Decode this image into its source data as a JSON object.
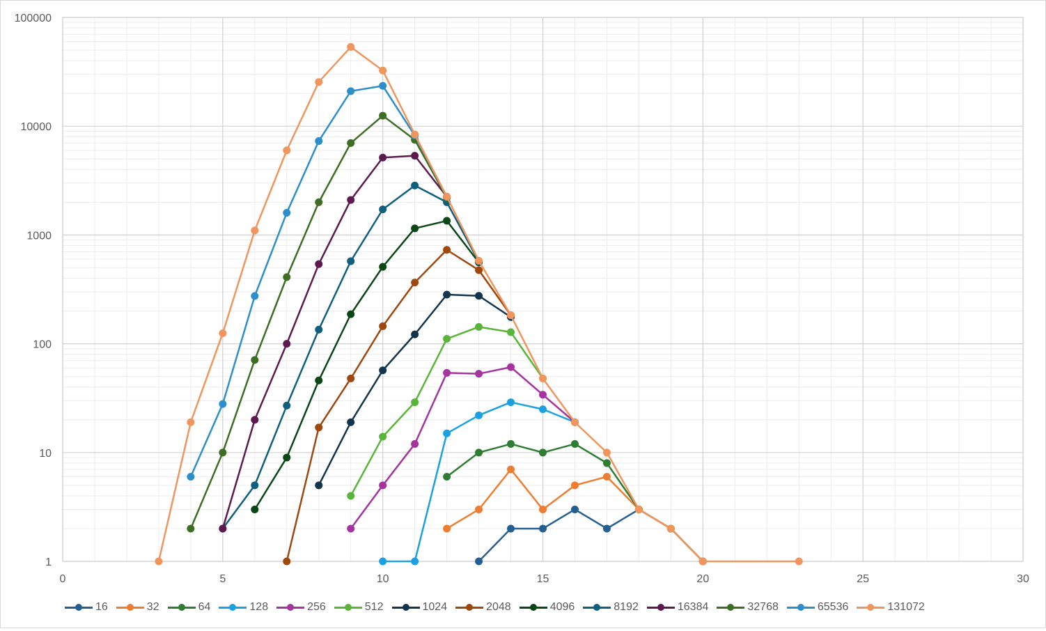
{
  "chart_data": {
    "type": "line",
    "title": "",
    "xlabel": "",
    "ylabel": "",
    "xlim": [
      0,
      30
    ],
    "ylim": [
      1,
      100000
    ],
    "y_scale": "log",
    "x_ticks": [
      "0",
      "5",
      "10",
      "15",
      "20",
      "25",
      "30"
    ],
    "y_ticks": [
      "1",
      "10",
      "100",
      "1000",
      "10000",
      "100000"
    ],
    "grid": true,
    "legend_position": "bottom",
    "series": [
      {
        "name": "16",
        "color": "#255E91",
        "points": [
          [
            13,
            1
          ],
          [
            14,
            2
          ],
          [
            15,
            2
          ],
          [
            16,
            3
          ],
          [
            17,
            2
          ],
          [
            18,
            3
          ],
          [
            19,
            2
          ],
          [
            20,
            1
          ]
        ]
      },
      {
        "name": "32",
        "color": "#ED7D31",
        "points": [
          [
            12,
            2
          ],
          [
            13,
            3
          ],
          [
            14,
            7
          ],
          [
            15,
            3
          ],
          [
            16,
            5
          ],
          [
            17,
            6
          ],
          [
            18,
            3
          ],
          [
            19,
            2
          ],
          [
            20,
            1
          ]
        ]
      },
      {
        "name": "64",
        "color": "#2E7D32",
        "points": [
          [
            12,
            6
          ],
          [
            13,
            10
          ],
          [
            14,
            12
          ],
          [
            15,
            10
          ],
          [
            16,
            12
          ],
          [
            17,
            8
          ],
          [
            18,
            3
          ],
          [
            19,
            2
          ],
          [
            20,
            1
          ]
        ]
      },
      {
        "name": "128",
        "color": "#1BA1E2",
        "points": [
          [
            10,
            1
          ],
          [
            11,
            1
          ],
          [
            12,
            15
          ],
          [
            13,
            22
          ],
          [
            14,
            29
          ],
          [
            15,
            25
          ],
          [
            16,
            19
          ]
        ]
      },
      {
        "name": "256",
        "color": "#A5349F",
        "points": [
          [
            9,
            2
          ],
          [
            10,
            5
          ],
          [
            11,
            12
          ],
          [
            12,
            54
          ],
          [
            13,
            53
          ],
          [
            14,
            61
          ],
          [
            15,
            34
          ],
          [
            16,
            19
          ]
        ]
      },
      {
        "name": "512",
        "color": "#5BB43A",
        "points": [
          [
            9,
            4
          ],
          [
            10,
            14
          ],
          [
            11,
            29
          ],
          [
            12,
            111
          ],
          [
            13,
            143
          ],
          [
            14,
            128
          ],
          [
            15,
            48
          ]
        ]
      },
      {
        "name": "1024",
        "color": "#12344D",
        "points": [
          [
            8,
            5
          ],
          [
            9,
            19
          ],
          [
            10,
            57
          ],
          [
            11,
            122
          ],
          [
            12,
            283
          ],
          [
            13,
            276
          ],
          [
            14,
            176
          ]
        ]
      },
      {
        "name": "2048",
        "color": "#9E480E",
        "points": [
          [
            7,
            1
          ],
          [
            8,
            17
          ],
          [
            9,
            48
          ],
          [
            10,
            145
          ],
          [
            11,
            366
          ],
          [
            12,
            730
          ],
          [
            13,
            475
          ],
          [
            14,
            183
          ]
        ]
      },
      {
        "name": "4096",
        "color": "#0B4616",
        "points": [
          [
            6,
            3
          ],
          [
            7,
            9
          ],
          [
            8,
            46
          ],
          [
            9,
            187
          ],
          [
            10,
            510
          ],
          [
            11,
            1150
          ],
          [
            12,
            1350
          ],
          [
            13,
            560
          ]
        ]
      },
      {
        "name": "8192",
        "color": "#0F5F7D",
        "points": [
          [
            5,
            2
          ],
          [
            6,
            5
          ],
          [
            7,
            27
          ],
          [
            8,
            135
          ],
          [
            9,
            575
          ],
          [
            10,
            1720
          ],
          [
            11,
            2850
          ],
          [
            12,
            2000
          ],
          [
            13,
            570
          ]
        ]
      },
      {
        "name": "16384",
        "color": "#5C1A4F",
        "points": [
          [
            5,
            2
          ],
          [
            6,
            20
          ],
          [
            7,
            100
          ],
          [
            8,
            540
          ],
          [
            9,
            2100
          ],
          [
            10,
            5150
          ],
          [
            11,
            5350
          ],
          [
            12,
            2250
          ]
        ]
      },
      {
        "name": "32768",
        "color": "#3E6E23",
        "points": [
          [
            4,
            2
          ],
          [
            5,
            10
          ],
          [
            6,
            71
          ],
          [
            7,
            410
          ],
          [
            8,
            2000
          ],
          [
            9,
            7000
          ],
          [
            10,
            12500
          ],
          [
            11,
            7500
          ],
          [
            12,
            2200
          ]
        ]
      },
      {
        "name": "65536",
        "color": "#2C8FCB",
        "points": [
          [
            4,
            6
          ],
          [
            5,
            28
          ],
          [
            6,
            275
          ],
          [
            7,
            1600
          ],
          [
            8,
            7300
          ],
          [
            9,
            21000
          ],
          [
            10,
            23500
          ],
          [
            11,
            8200
          ],
          [
            12,
            2250
          ]
        ]
      },
      {
        "name": "131072",
        "color": "#F0955D",
        "points": [
          [
            3,
            1
          ],
          [
            4,
            19
          ],
          [
            5,
            125
          ],
          [
            6,
            1100
          ],
          [
            7,
            6000
          ],
          [
            8,
            25500
          ],
          [
            9,
            53500
          ],
          [
            10,
            32500
          ],
          [
            11,
            8400
          ],
          [
            12,
            2250
          ],
          [
            13,
            580
          ],
          [
            14,
            183
          ],
          [
            15,
            48
          ],
          [
            16,
            19
          ],
          [
            17,
            10
          ],
          [
            18,
            3
          ],
          [
            19,
            2
          ],
          [
            20,
            1
          ],
          [
            23,
            1
          ]
        ]
      }
    ]
  }
}
